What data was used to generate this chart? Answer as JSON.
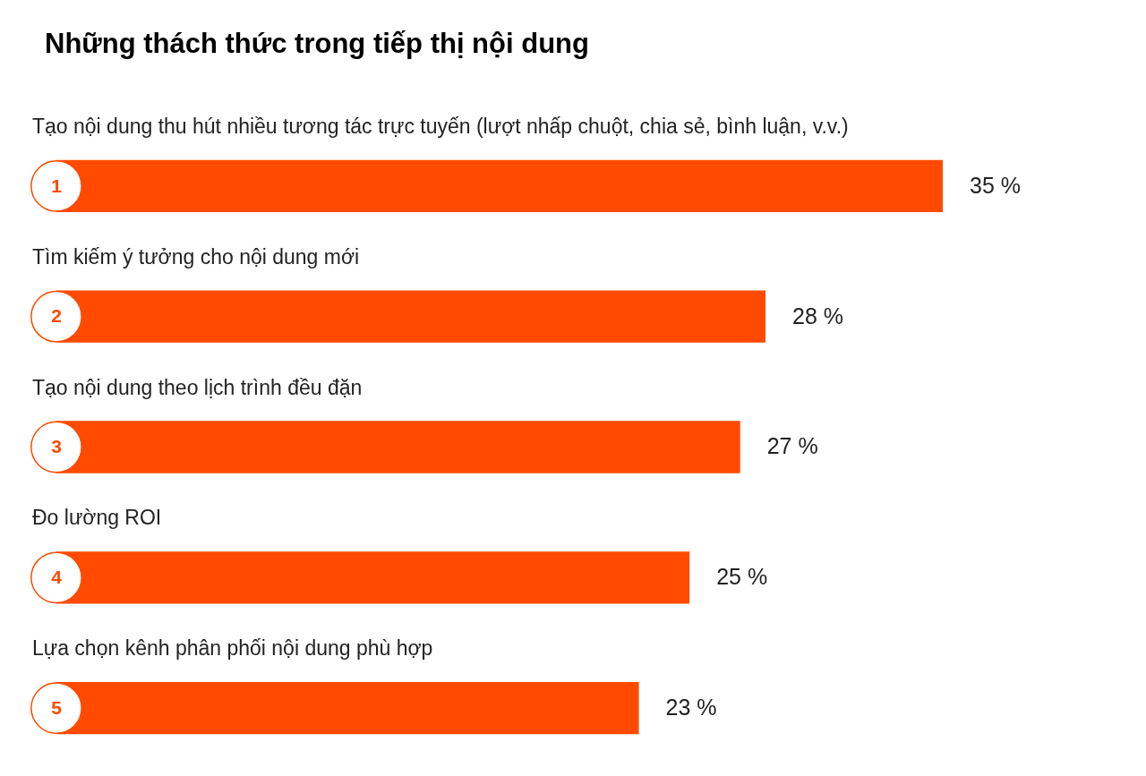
{
  "chart_data": {
    "type": "bar",
    "orientation": "horizontal",
    "title": "Những thách thức trong tiếp thị nội dung",
    "categories": [
      "Tạo nội dung thu hút nhiều tương tác trực tuyến (lượt nhấp chuột, chia sẻ, bình luận, v.v.)",
      "Tìm kiếm ý tưởng cho nội dung mới",
      "Tạo nội dung theo lịch trình đều đặn",
      "Đo lường ROI",
      "Lựa chọn kênh phân phối nội dung phù hợp"
    ],
    "values": [
      35,
      28,
      27,
      25,
      23
    ],
    "color": "#ff4a00",
    "value_labels": [
      "35 %",
      "28 %",
      "27 %",
      "25 %",
      "23 %"
    ],
    "annotations": [
      "1",
      "2",
      "3",
      "4",
      "5"
    ]
  }
}
